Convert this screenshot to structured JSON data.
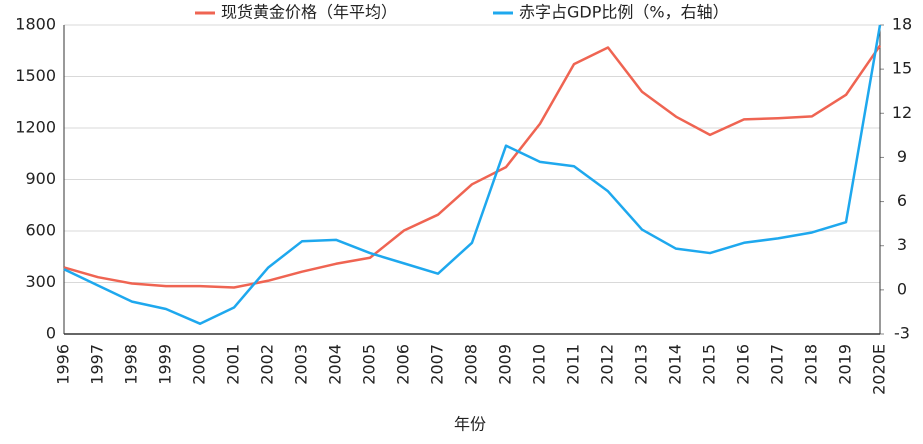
{
  "chart_data": {
    "type": "line",
    "categories": [
      "1996",
      "1997",
      "1998",
      "1999",
      "2000",
      "2001",
      "2002",
      "2003",
      "2004",
      "2005",
      "2006",
      "2007",
      "2008",
      "2009",
      "2010",
      "2011",
      "2012",
      "2013",
      "2014",
      "2015",
      "2016",
      "2017",
      "2018",
      "2019",
      "2020E"
    ],
    "series": [
      {
        "name": "现货黄金价格（年平均）",
        "color": "#ef6452",
        "values": [
          388,
          331,
          294,
          279,
          279,
          271,
          310,
          363,
          409,
          444,
          603,
          695,
          872,
          972,
          1225,
          1572,
          1669,
          1411,
          1266,
          1160,
          1250,
          1257,
          1268,
          1393,
          1680
        ]
      },
      {
        "name": "赤字占GDP比例（%，右轴）",
        "color": "#1ea8ee",
        "axis": "y2",
        "values": [
          1.4,
          0.3,
          -0.8,
          -1.3,
          -2.3,
          -1.2,
          1.5,
          3.3,
          3.4,
          2.5,
          1.8,
          1.1,
          3.2,
          9.8,
          8.7,
          8.4,
          6.7,
          4.1,
          2.8,
          2.5,
          3.2,
          3.5,
          3.9,
          4.6,
          18
        ]
      }
    ],
    "ylim": [
      0,
      1800
    ],
    "yticks": [
      0,
      300,
      600,
      900,
      1200,
      1500,
      1800
    ],
    "y2lim": [
      -3,
      18
    ],
    "y2ticks": [
      -3,
      0,
      3,
      6,
      9,
      12,
      15,
      18
    ],
    "x_label": "年份",
    "grid": true
  }
}
